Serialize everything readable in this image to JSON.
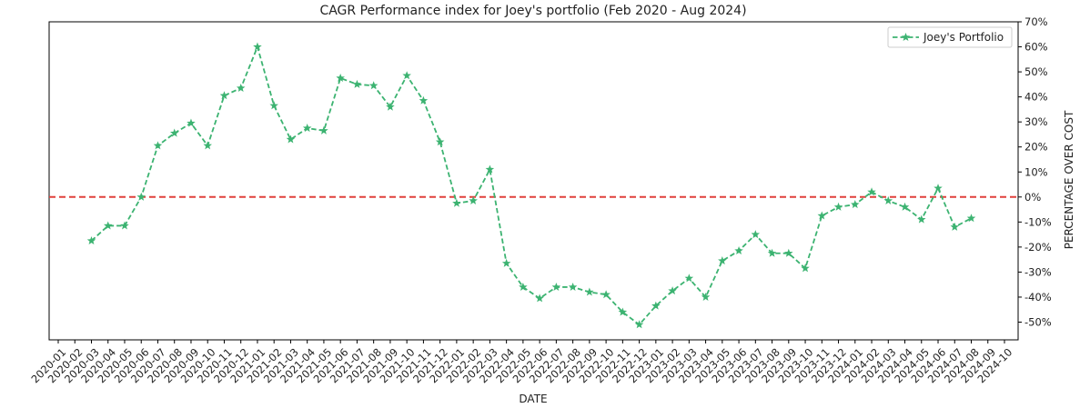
{
  "chart_data": {
    "type": "line",
    "title": "CAGR Performance index for Joey's portfolio (Feb 2020 - Aug 2024)",
    "xlabel": "DATE",
    "ylabel": "PERCENTAGE OVER COST",
    "x_ticks": [
      "2020-01",
      "2020-02",
      "2020-03",
      "2020-04",
      "2020-05",
      "2020-06",
      "2020-07",
      "2020-08",
      "2020-09",
      "2020-10",
      "2020-11",
      "2020-12",
      "2021-01",
      "2021-02",
      "2021-03",
      "2021-04",
      "2021-05",
      "2021-06",
      "2021-07",
      "2021-08",
      "2021-09",
      "2021-10",
      "2021-11",
      "2021-12",
      "2022-01",
      "2022-02",
      "2022-03",
      "2022-04",
      "2022-05",
      "2022-06",
      "2022-07",
      "2022-08",
      "2022-09",
      "2022-10",
      "2022-11",
      "2022-12",
      "2023-01",
      "2023-02",
      "2023-03",
      "2023-04",
      "2023-05",
      "2023-06",
      "2023-07",
      "2023-08",
      "2023-09",
      "2023-10",
      "2023-11",
      "2023-12",
      "2024-01",
      "2024-02",
      "2024-03",
      "2024-04",
      "2024-05",
      "2024-06",
      "2024-07",
      "2024-08",
      "2024-09",
      "2024-10"
    ],
    "y_ticks": [
      "70%",
      "60%",
      "50%",
      "40%",
      "30%",
      "20%",
      "10%",
      "0%",
      "-10%",
      "-20%",
      "-30%",
      "-40%",
      "-50%"
    ],
    "y_tick_values": [
      70,
      60,
      50,
      40,
      30,
      20,
      10,
      0,
      -10,
      -20,
      -30,
      -40,
      -50
    ],
    "ylim": [
      -57,
      70
    ],
    "xlim": [
      "2020-01",
      "2024-10"
    ],
    "y_axis_side": "right",
    "grid": false,
    "legend_position": "top-right",
    "reference_line": {
      "y": 0,
      "style": "dashed",
      "color": "#e0413c"
    },
    "series": [
      {
        "name": "Joey's Portfolio",
        "color": "#3cb371",
        "line_style": "dashed",
        "marker": "star",
        "points": [
          [
            "2020-03",
            -17.5
          ],
          [
            "2020-04",
            -11.5
          ],
          [
            "2020-05",
            -11.5
          ],
          [
            "2020-06",
            0
          ],
          [
            "2020-07",
            20.5
          ],
          [
            "2020-08",
            25.5
          ],
          [
            "2020-09",
            29.5
          ],
          [
            "2020-10",
            20.5
          ],
          [
            "2020-11",
            40.5
          ],
          [
            "2020-12",
            43.5
          ],
          [
            "2021-01",
            60
          ],
          [
            "2021-02",
            36.5
          ],
          [
            "2021-03",
            23
          ],
          [
            "2021-04",
            27.5
          ],
          [
            "2021-05",
            26.5
          ],
          [
            "2021-06",
            47.5
          ],
          [
            "2021-07",
            45
          ],
          [
            "2021-08",
            44.5
          ],
          [
            "2021-09",
            36
          ],
          [
            "2021-10",
            48.5
          ],
          [
            "2021-11",
            38.5
          ],
          [
            "2021-12",
            22
          ],
          [
            "2022-01",
            -2.5
          ],
          [
            "2022-02",
            -1.5
          ],
          [
            "2022-03",
            11
          ],
          [
            "2022-04",
            -26.5
          ],
          [
            "2022-05",
            -36
          ],
          [
            "2022-06",
            -40.5
          ],
          [
            "2022-07",
            -36
          ],
          [
            "2022-08",
            -36
          ],
          [
            "2022-09",
            -38
          ],
          [
            "2022-10",
            -39
          ],
          [
            "2022-11",
            -46
          ],
          [
            "2022-12",
            -51
          ],
          [
            "2023-01",
            -43.5
          ],
          [
            "2023-02",
            -37.5
          ],
          [
            "2023-03",
            -32.5
          ],
          [
            "2023-04",
            -40
          ],
          [
            "2023-05",
            -25.5
          ],
          [
            "2023-06",
            -21.5
          ],
          [
            "2023-07",
            -15
          ],
          [
            "2023-08",
            -22.5
          ],
          [
            "2023-09",
            -22.5
          ],
          [
            "2023-10",
            -28.5
          ],
          [
            "2023-11",
            -7.5
          ],
          [
            "2023-12",
            -4
          ],
          [
            "2024-01",
            -3
          ],
          [
            "2024-02",
            2
          ],
          [
            "2024-03",
            -1.5
          ],
          [
            "2024-04",
            -4
          ],
          [
            "2024-05",
            -9
          ],
          [
            "2024-06",
            3.5
          ],
          [
            "2024-07",
            -12
          ],
          [
            "2024-08",
            -8.5
          ]
        ]
      }
    ]
  }
}
